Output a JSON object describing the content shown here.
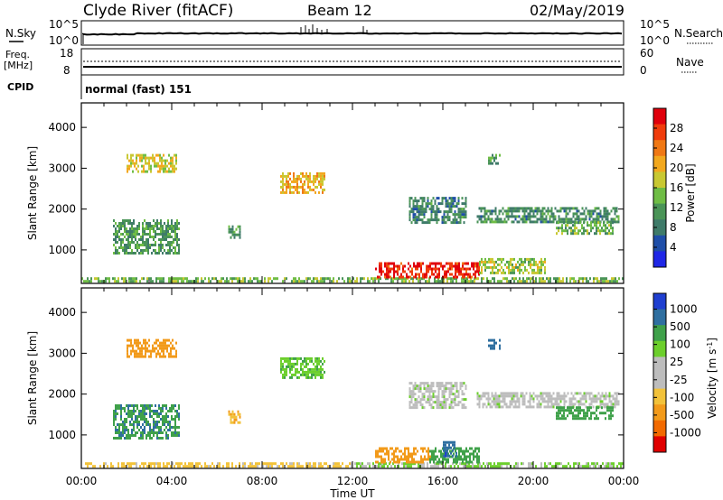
{
  "header": {
    "station": "Clyde River (fitACF)",
    "beam": "Beam 12",
    "date": "02/May/2019"
  },
  "status_panel": {
    "nsky_label": "N.Sky",
    "nsearch_label": "N.Search",
    "nsky_ticks": [
      "10^5",
      "10^0"
    ],
    "nsearch_ticks": [
      "10^5",
      "10^0"
    ],
    "freq_label": "Freq.",
    "freq_unit": "[MHz]",
    "freq_ticks": [
      "18",
      "8"
    ],
    "nave_label": "Nave",
    "nave_ticks": [
      "60",
      "0"
    ],
    "cpid_label": "CPID",
    "cpid_text": "normal (fast) 151"
  },
  "colors": {
    "power": [
      "#1f27e6",
      "#1f4ea8",
      "#3f7b69",
      "#4a9457",
      "#6fbd45",
      "#c8c832",
      "#f2a81e",
      "#f07814",
      "#f03c0c",
      "#e0000c"
    ],
    "velocity": [
      "#e00000",
      "#f26a00",
      "#f29a1a",
      "#f2c23a",
      "#bdbdbd",
      "#bdbdbd",
      "#6ccf2c",
      "#3fa14a",
      "#2f6fa0",
      "#1f3fd0"
    ]
  },
  "chart_data": [
    {
      "type": "heatmap",
      "title": "",
      "xlabel": "Time UT",
      "ylabel": "Slant Range [km]",
      "xlim": [
        0,
        24
      ],
      "ylim": [
        180,
        4600
      ],
      "x_ticks": [
        "00:00",
        "04:00",
        "08:00",
        "12:00",
        "16:00",
        "20:00",
        "00:00"
      ],
      "y_ticks": [
        1000,
        2000,
        3000,
        4000
      ],
      "colorbar": {
        "label": "Power [dB]",
        "range": [
          0,
          32
        ],
        "ticks": [
          4,
          8,
          12,
          16,
          20,
          24,
          28
        ]
      },
      "regions": [
        {
          "t": [
            0.0,
            24.0
          ],
          "r": [
            200,
            330
          ],
          "value": 14
        },
        {
          "t": [
            13.0,
            17.6
          ],
          "r": [
            330,
            700
          ],
          "value": 29
        },
        {
          "t": [
            17.6,
            20.5
          ],
          "r": [
            450,
            800
          ],
          "value": 16
        },
        {
          "t": [
            1.4,
            4.3
          ],
          "r": [
            950,
            1750
          ],
          "value": 11
        },
        {
          "t": [
            2.0,
            4.2
          ],
          "r": [
            2950,
            3350
          ],
          "value": 18
        },
        {
          "t": [
            6.5,
            7.0
          ],
          "r": [
            1300,
            1600
          ],
          "value": 12
        },
        {
          "t": [
            8.8,
            10.8
          ],
          "r": [
            2400,
            2900
          ],
          "value": 20
        },
        {
          "t": [
            14.5,
            17.0
          ],
          "r": [
            1700,
            2300
          ],
          "value": 9
        },
        {
          "t": [
            17.5,
            23.8
          ],
          "r": [
            1700,
            2050
          ],
          "value": 10
        },
        {
          "t": [
            18.0,
            18.5
          ],
          "r": [
            3100,
            3350
          ],
          "value": 12
        },
        {
          "t": [
            21.0,
            23.5
          ],
          "r": [
            1400,
            1700
          ],
          "value": 13
        }
      ]
    },
    {
      "type": "heatmap",
      "title": "",
      "xlabel": "Time UT",
      "ylabel": "Slant Range [km]",
      "xlim": [
        0,
        24
      ],
      "ylim": [
        180,
        4600
      ],
      "x_ticks": [
        "00:00",
        "04:00",
        "08:00",
        "12:00",
        "16:00",
        "20:00",
        "00:00"
      ],
      "y_ticks": [
        1000,
        2000,
        3000,
        4000
      ],
      "colorbar": {
        "label": "Velocity [m s^-1]",
        "ticks": [
          "1000",
          "500",
          "100",
          "25",
          "-25",
          "-100",
          "-500",
          "-1000"
        ]
      },
      "regions": [
        {
          "t": [
            0.0,
            12.0
          ],
          "r": [
            200,
            330
          ],
          "value": -40
        },
        {
          "t": [
            12.0,
            24.0
          ],
          "r": [
            200,
            330
          ],
          "value": 30
        },
        {
          "t": [
            13.0,
            15.4
          ],
          "r": [
            330,
            700
          ],
          "value": -300
        },
        {
          "t": [
            15.4,
            17.6
          ],
          "r": [
            330,
            700
          ],
          "value": 150
        },
        {
          "t": [
            16.0,
            16.6
          ],
          "r": [
            500,
            850
          ],
          "value": 800
        },
        {
          "t": [
            1.4,
            4.3
          ],
          "r": [
            950,
            1750
          ],
          "value": 450
        },
        {
          "t": [
            2.0,
            4.2
          ],
          "r": [
            2950,
            3350
          ],
          "value": -150
        },
        {
          "t": [
            6.5,
            7.0
          ],
          "r": [
            1300,
            1600
          ],
          "value": -90
        },
        {
          "t": [
            8.8,
            10.8
          ],
          "r": [
            2400,
            2900
          ],
          "value": 90
        },
        {
          "t": [
            14.5,
            17.0
          ],
          "r": [
            1700,
            2300
          ],
          "value": 10
        },
        {
          "t": [
            17.5,
            23.8
          ],
          "r": [
            1700,
            2050
          ],
          "value": 10
        },
        {
          "t": [
            18.0,
            18.5
          ],
          "r": [
            3100,
            3350
          ],
          "value": 700
        },
        {
          "t": [
            21.0,
            23.5
          ],
          "r": [
            1400,
            1700
          ],
          "value": 300
        }
      ]
    }
  ]
}
